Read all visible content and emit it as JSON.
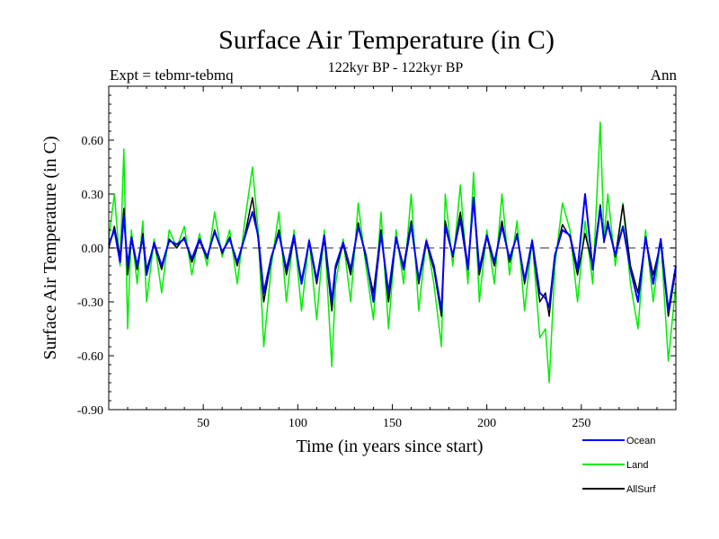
{
  "chart_data": {
    "type": "line",
    "title": "Surface Air Temperature (in C)",
    "subtitle": "122kyr BP - 122kyr BP",
    "left_label": "Expt = tebmr-tebmq",
    "right_label": "Ann",
    "xlabel": "Time (in years since start)",
    "ylabel": "Surface Air Temperature (in C)",
    "xlim": [
      0,
      300
    ],
    "ylim": [
      -0.9,
      0.9
    ],
    "x_ticks": [
      50,
      100,
      150,
      200,
      250
    ],
    "y_ticks": [
      -0.9,
      -0.6,
      -0.3,
      0.0,
      0.3,
      0.6
    ],
    "y_tick_labels": [
      "-0.90",
      "-0.60",
      "-0.30",
      "0.00",
      "0.30",
      "0.60"
    ],
    "zero_line": 0.0,
    "series": [
      {
        "name": "Land",
        "color": "#00ee00",
        "x": [
          0,
          3,
          6,
          8,
          10,
          12,
          15,
          18,
          20,
          24,
          28,
          32,
          36,
          40,
          44,
          48,
          52,
          56,
          60,
          64,
          68,
          72,
          76,
          79,
          82,
          86,
          90,
          94,
          98,
          102,
          106,
          110,
          114,
          118,
          120,
          124,
          128,
          132,
          136,
          140,
          144,
          148,
          152,
          156,
          160,
          164,
          168,
          172,
          176,
          178,
          182,
          186,
          190,
          193,
          196,
          200,
          204,
          208,
          212,
          216,
          220,
          224,
          228,
          231,
          233,
          236,
          240,
          244,
          248,
          252,
          256,
          260,
          262,
          264,
          268,
          272,
          276,
          280,
          284,
          288,
          292,
          296,
          300
        ],
        "values": [
          0.05,
          0.3,
          -0.1,
          0.55,
          -0.45,
          0.1,
          -0.2,
          0.15,
          -0.3,
          0.05,
          -0.25,
          0.1,
          0.0,
          0.12,
          -0.15,
          0.08,
          -0.1,
          0.2,
          -0.05,
          0.1,
          -0.2,
          0.15,
          0.45,
          0.1,
          -0.55,
          -0.1,
          0.2,
          -0.3,
          0.1,
          -0.35,
          0.05,
          -0.4,
          0.1,
          -0.66,
          -0.2,
          0.05,
          -0.3,
          0.25,
          -0.1,
          -0.4,
          0.2,
          -0.45,
          0.1,
          -0.2,
          0.3,
          -0.35,
          0.05,
          -0.2,
          -0.55,
          0.3,
          -0.1,
          0.35,
          -0.2,
          0.42,
          -0.3,
          0.1,
          -0.2,
          0.3,
          -0.15,
          0.15,
          -0.35,
          0.05,
          -0.5,
          -0.45,
          -0.75,
          -0.1,
          0.25,
          0.1,
          -0.3,
          0.15,
          -0.2,
          0.7,
          0.05,
          0.3,
          -0.1,
          0.25,
          -0.2,
          -0.45,
          0.1,
          -0.3,
          0.05,
          -0.63,
          -0.2
        ]
      },
      {
        "name": "AllSurf",
        "color": "#000000",
        "x": [
          0,
          3,
          6,
          8,
          10,
          12,
          15,
          18,
          20,
          24,
          28,
          32,
          36,
          40,
          44,
          48,
          52,
          56,
          60,
          64,
          68,
          72,
          76,
          79,
          82,
          86,
          90,
          94,
          98,
          102,
          106,
          110,
          114,
          118,
          120,
          124,
          128,
          132,
          136,
          140,
          144,
          148,
          152,
          156,
          160,
          164,
          168,
          172,
          176,
          178,
          182,
          186,
          190,
          193,
          196,
          200,
          204,
          208,
          212,
          216,
          220,
          224,
          228,
          231,
          233,
          236,
          240,
          244,
          248,
          252,
          256,
          260,
          262,
          264,
          268,
          272,
          276,
          280,
          284,
          288,
          292,
          296,
          300
        ],
        "values": [
          0.0,
          0.12,
          -0.05,
          0.22,
          -0.15,
          0.05,
          -0.12,
          0.08,
          -0.12,
          0.02,
          -0.12,
          0.05,
          0.0,
          0.06,
          -0.08,
          0.04,
          -0.06,
          0.1,
          -0.03,
          0.06,
          -0.1,
          0.07,
          0.28,
          0.05,
          -0.3,
          -0.06,
          0.1,
          -0.15,
          0.05,
          -0.18,
          0.03,
          -0.2,
          0.05,
          -0.35,
          -0.12,
          0.02,
          -0.15,
          0.14,
          -0.06,
          -0.25,
          0.1,
          -0.3,
          0.05,
          -0.1,
          0.15,
          -0.2,
          0.03,
          -0.12,
          -0.38,
          0.15,
          -0.05,
          0.2,
          -0.1,
          0.26,
          -0.15,
          0.06,
          -0.1,
          0.15,
          -0.08,
          0.08,
          -0.2,
          0.03,
          -0.3,
          -0.25,
          -0.38,
          -0.05,
          0.13,
          0.06,
          -0.15,
          0.08,
          -0.1,
          0.24,
          0.03,
          0.15,
          -0.05,
          0.24,
          -0.1,
          -0.25,
          0.05,
          -0.15,
          0.03,
          -0.38,
          -0.12
        ]
      },
      {
        "name": "Ocean",
        "color": "#0000ff",
        "x": [
          0,
          3,
          6,
          8,
          10,
          12,
          15,
          18,
          20,
          24,
          28,
          32,
          36,
          40,
          44,
          48,
          52,
          56,
          60,
          64,
          68,
          72,
          76,
          79,
          82,
          86,
          90,
          94,
          98,
          102,
          106,
          110,
          114,
          118,
          120,
          124,
          128,
          132,
          136,
          140,
          144,
          148,
          152,
          156,
          160,
          164,
          168,
          172,
          176,
          178,
          182,
          186,
          190,
          193,
          196,
          200,
          204,
          208,
          212,
          216,
          220,
          224,
          228,
          231,
          233,
          236,
          240,
          244,
          248,
          252,
          256,
          260,
          262,
          264,
          268,
          272,
          276,
          280,
          284,
          288,
          292,
          296,
          300
        ],
        "values": [
          0.02,
          0.1,
          -0.08,
          0.18,
          -0.1,
          0.06,
          -0.1,
          0.06,
          -0.15,
          0.03,
          -0.1,
          0.04,
          0.02,
          0.05,
          -0.06,
          0.05,
          -0.05,
          0.09,
          -0.02,
          0.05,
          -0.08,
          0.06,
          0.2,
          0.07,
          -0.25,
          -0.05,
          0.08,
          -0.12,
          0.07,
          -0.2,
          0.04,
          -0.18,
          0.07,
          -0.3,
          -0.1,
          0.03,
          -0.12,
          0.12,
          -0.04,
          -0.3,
          0.08,
          -0.25,
          0.06,
          -0.12,
          0.13,
          -0.18,
          0.04,
          -0.1,
          -0.35,
          0.12,
          -0.04,
          0.16,
          -0.12,
          0.28,
          -0.12,
          0.07,
          -0.08,
          0.12,
          -0.06,
          0.07,
          -0.18,
          0.04,
          -0.25,
          -0.28,
          -0.33,
          -0.04,
          0.1,
          0.07,
          -0.12,
          0.3,
          -0.12,
          0.22,
          0.04,
          0.13,
          -0.04,
          0.12,
          -0.12,
          -0.3,
          0.06,
          -0.2,
          0.05,
          -0.35,
          -0.1
        ]
      }
    ],
    "legend": [
      {
        "name": "Ocean",
        "color": "#0000ff"
      },
      {
        "name": "Land",
        "color": "#00ee00"
      },
      {
        "name": "AllSurf",
        "color": "#000000"
      }
    ]
  }
}
